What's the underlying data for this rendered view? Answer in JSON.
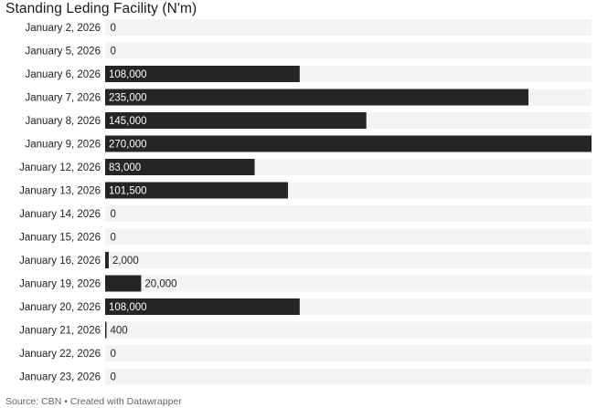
{
  "title": "Standing Leding Facility (N'm)",
  "source": "Source: CBN • Created with Datawrapper",
  "colors": {
    "bar": "#252525",
    "track": "#f3f3f3",
    "label": "#222222",
    "value_outside": "#222222",
    "value_inside": "#ffffff"
  },
  "chart_data": {
    "type": "bar",
    "orientation": "horizontal",
    "title": "Standing Leding Facility (N'm)",
    "categories": [
      "January 2, 2026",
      "January 5, 2026",
      "January 6, 2026",
      "January 7, 2026",
      "January 8, 2026",
      "January 9, 2026",
      "January 12, 2026",
      "January 13, 2026",
      "January 14, 2026",
      "January 15, 2026",
      "January 16, 2026",
      "January 19, 2026",
      "January 20, 2026",
      "January 21, 2026",
      "January 22, 2026",
      "January 23, 2026"
    ],
    "values": [
      0,
      0,
      108000,
      235000,
      145000,
      270000,
      83000,
      101500,
      0,
      0,
      2000,
      20000,
      108000,
      400,
      0,
      0
    ],
    "value_labels": [
      "0",
      "0",
      "108,000",
      "235,000",
      "145,000",
      "270,000",
      "83,000",
      "101,500",
      "0",
      "0",
      "2,000",
      "20,000",
      "108,000",
      "400",
      "0",
      "0"
    ],
    "xlim": [
      0,
      270000
    ],
    "grid": false,
    "legend": "none"
  }
}
